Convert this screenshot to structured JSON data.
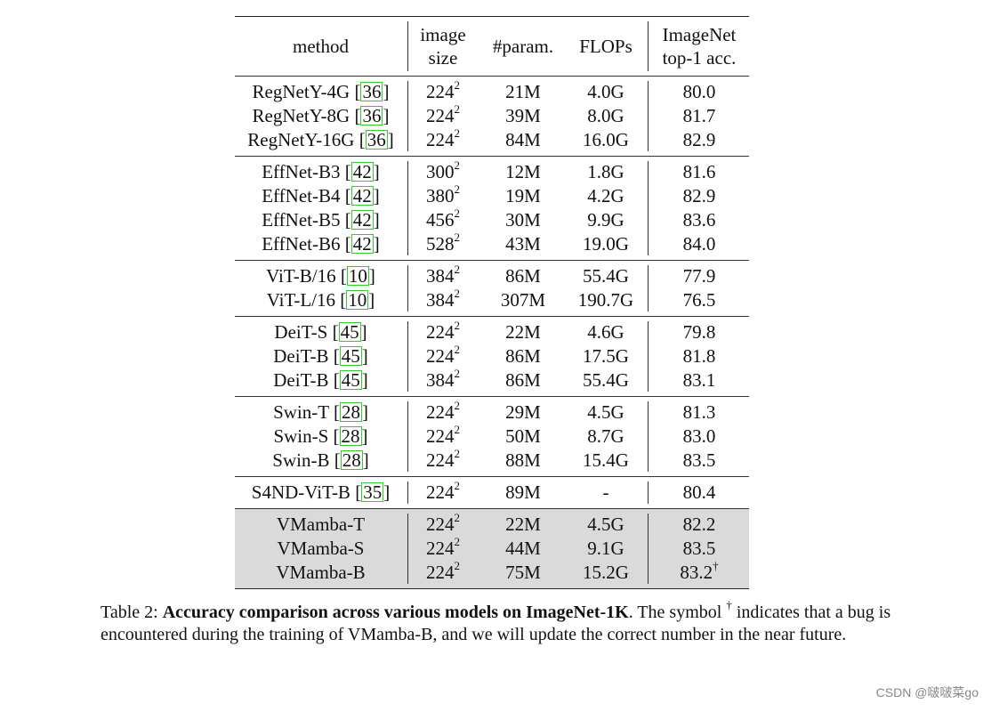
{
  "header": {
    "method": "method",
    "image_size_l1": "image",
    "image_size_l2": "size",
    "params": "#param.",
    "flops": "FLOPs",
    "acc_l1": "ImageNet",
    "acc_l2": "top-1 acc."
  },
  "groups": [
    {
      "rows": [
        {
          "name": "RegNetY-4G",
          "ref": "36",
          "size": "224",
          "exp": "2",
          "params": "21M",
          "flops": "4.0G",
          "acc": "80.0"
        },
        {
          "name": "RegNetY-8G",
          "ref": "36",
          "size": "224",
          "exp": "2",
          "params": "39M",
          "flops": "8.0G",
          "acc": "81.7"
        },
        {
          "name": "RegNetY-16G",
          "ref": "36",
          "size": "224",
          "exp": "2",
          "params": "84M",
          "flops": "16.0G",
          "acc": "82.9"
        }
      ]
    },
    {
      "rows": [
        {
          "name": "EffNet-B3",
          "ref": "42",
          "size": "300",
          "exp": "2",
          "params": "12M",
          "flops": "1.8G",
          "acc": "81.6"
        },
        {
          "name": "EffNet-B4",
          "ref": "42",
          "size": "380",
          "exp": "2",
          "params": "19M",
          "flops": "4.2G",
          "acc": "82.9"
        },
        {
          "name": "EffNet-B5",
          "ref": "42",
          "size": "456",
          "exp": "2",
          "params": "30M",
          "flops": "9.9G",
          "acc": "83.6"
        },
        {
          "name": "EffNet-B6",
          "ref": "42",
          "size": "528",
          "exp": "2",
          "params": "43M",
          "flops": "19.0G",
          "acc": "84.0"
        }
      ]
    },
    {
      "rows": [
        {
          "name": "ViT-B/16",
          "ref": "10",
          "size": "384",
          "exp": "2",
          "params": "86M",
          "flops": "55.4G",
          "acc": "77.9"
        },
        {
          "name": "ViT-L/16",
          "ref": "10",
          "size": "384",
          "exp": "2",
          "params": "307M",
          "flops": "190.7G",
          "acc": "76.5"
        }
      ]
    },
    {
      "rows": [
        {
          "name": "DeiT-S",
          "ref": "45",
          "size": "224",
          "exp": "2",
          "params": "22M",
          "flops": "4.6G",
          "acc": "79.8"
        },
        {
          "name": "DeiT-B",
          "ref": "45",
          "size": "224",
          "exp": "2",
          "params": "86M",
          "flops": "17.5G",
          "acc": "81.8"
        },
        {
          "name": "DeiT-B",
          "ref": "45",
          "size": "384",
          "exp": "2",
          "params": "86M",
          "flops": "55.4G",
          "acc": "83.1"
        }
      ]
    },
    {
      "rows": [
        {
          "name": "Swin-T",
          "ref": "28",
          "size": "224",
          "exp": "2",
          "params": "29M",
          "flops": "4.5G",
          "acc": "81.3"
        },
        {
          "name": "Swin-S",
          "ref": "28",
          "size": "224",
          "exp": "2",
          "params": "50M",
          "flops": "8.7G",
          "acc": "83.0"
        },
        {
          "name": "Swin-B",
          "ref": "28",
          "size": "224",
          "exp": "2",
          "params": "88M",
          "flops": "15.4G",
          "acc": "83.5"
        }
      ]
    },
    {
      "rows": [
        {
          "name": "S4ND-ViT-B",
          "ref": "35",
          "size": "224",
          "exp": "2",
          "params": "89M",
          "flops": "-",
          "acc": "80.4"
        }
      ]
    },
    {
      "highlight": true,
      "rows": [
        {
          "name": "VMamba-T",
          "ref": "",
          "size": "224",
          "exp": "2",
          "params": "22M",
          "flops": "4.5G",
          "acc": "82.2"
        },
        {
          "name": "VMamba-S",
          "ref": "",
          "size": "224",
          "exp": "2",
          "params": "44M",
          "flops": "9.1G",
          "acc": "83.5"
        },
        {
          "name": "VMamba-B",
          "ref": "",
          "size": "224",
          "exp": "2",
          "params": "75M",
          "flops": "15.2G",
          "acc": "83.2",
          "acc_mark": "†"
        }
      ]
    }
  ],
  "caption": {
    "prefix": "Table 2: ",
    "bold": "Accuracy comparison across various models on ImageNet-1K",
    "rest_1": ". The symbol ",
    "dagger": "†",
    "rest_2": " indicates that a bug is encountered during the training of VMamba-B, and we will update the correct number in the near future."
  },
  "watermark": "CSDN @啵啵菜go"
}
